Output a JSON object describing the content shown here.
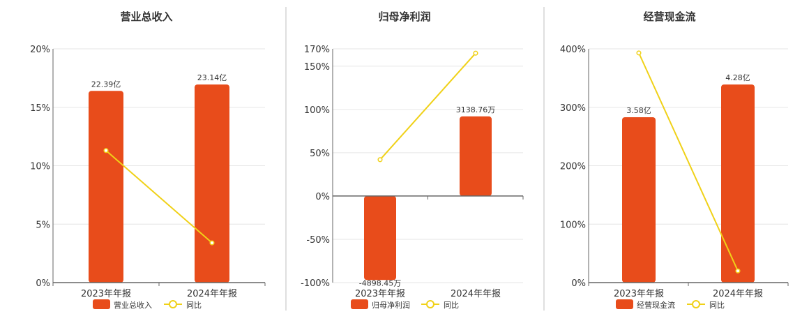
{
  "colors": {
    "bar": "#E84C1B",
    "line": "#F0D118",
    "grid": "#E6E6E6",
    "axis": "#666666",
    "divider": "#BFBFBF"
  },
  "chart_data": [
    {
      "type": "bar",
      "title": "营业总收入",
      "categories": [
        "2023年年报",
        "2024年年报"
      ],
      "bar_series": {
        "name": "营业总收入",
        "values": [
          22.39,
          23.14
        ],
        "labels": [
          "22.39亿",
          "23.14亿"
        ],
        "axis_values": [
          16.4,
          16.95
        ]
      },
      "line_series": {
        "name": "同比",
        "values": [
          11.3,
          3.4
        ]
      },
      "ylim": [
        0,
        20
      ],
      "yticks": [
        0,
        5,
        10,
        15,
        20
      ],
      "ytick_labels": [
        "0%",
        "5%",
        "10%",
        "15%",
        "20%"
      ],
      "legend": "bottom-center"
    },
    {
      "type": "bar",
      "title": "归母净利润",
      "categories": [
        "2023年年报",
        "2024年年报"
      ],
      "bar_series": {
        "name": "归母净利润",
        "values": [
          -4898.45,
          3138.76
        ],
        "labels": [
          "-4898.45万",
          "3138.76万"
        ],
        "axis_values": [
          -97,
          92
        ]
      },
      "line_series": {
        "name": "同比",
        "values": [
          42,
          165
        ]
      },
      "ylim": [
        -100,
        170
      ],
      "yticks": [
        -100,
        -50,
        0,
        50,
        100,
        150,
        170
      ],
      "ytick_labels": [
        "-100%",
        "-50%",
        "0%",
        "50%",
        "100%",
        "150%",
        "170%"
      ],
      "legend": "bottom-center"
    },
    {
      "type": "bar",
      "title": "经营现金流",
      "categories": [
        "2023年年报",
        "2024年年报"
      ],
      "bar_series": {
        "name": "经营现金流",
        "values": [
          3.58,
          4.28
        ],
        "labels": [
          "3.58亿",
          "4.28亿"
        ],
        "axis_values": [
          283,
          339
        ]
      },
      "line_series": {
        "name": "同比",
        "values": [
          393,
          20
        ]
      },
      "ylim": [
        0,
        400
      ],
      "yticks": [
        0,
        100,
        200,
        300,
        400
      ],
      "ytick_labels": [
        "0%",
        "100%",
        "200%",
        "300%",
        "400%"
      ],
      "legend": "bottom-center"
    }
  ]
}
